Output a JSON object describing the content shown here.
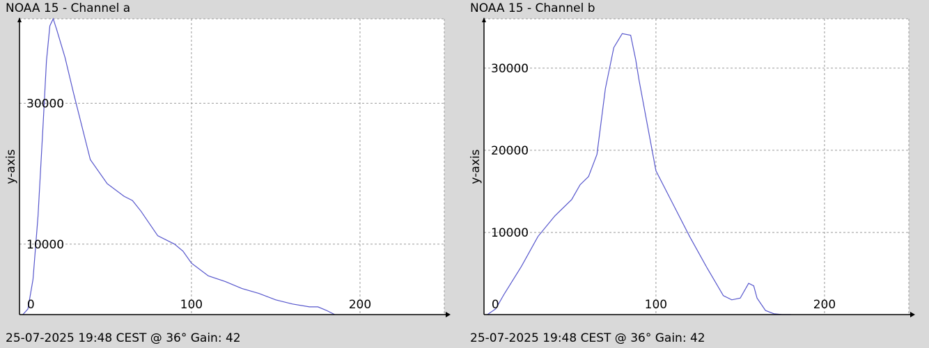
{
  "colors": {
    "background": "#d9d9d9",
    "plot_bg": "#ffffff",
    "line": "#5555cc",
    "grid": "#999999",
    "axis": "#000000"
  },
  "chart_data": [
    {
      "type": "line",
      "title": "NOAA 15 - Channel a",
      "footer": "25-07-2025 19:48 CEST @ 36° Gain: 42",
      "ylabel": "y-axis",
      "xlim": [
        -2,
        250
      ],
      "ylim": [
        0,
        42000
      ],
      "xticks": [
        {
          "value": 0,
          "label": "0"
        },
        {
          "value": 100,
          "label": "100"
        },
        {
          "value": 200,
          "label": "200"
        }
      ],
      "yticks": [
        {
          "value": 10000,
          "label": "10000"
        },
        {
          "value": 30000,
          "label": "30000"
        }
      ],
      "grid": true,
      "x": [
        0,
        3,
        6,
        9,
        12,
        14,
        16,
        18,
        20,
        25,
        30,
        40,
        50,
        60,
        65,
        70,
        80,
        90,
        95,
        100,
        110,
        120,
        130,
        140,
        150,
        160,
        170,
        175,
        180,
        185
      ],
      "y": [
        0,
        800,
        5000,
        14000,
        27000,
        36000,
        41000,
        42000,
        40500,
        36500,
        31500,
        22000,
        18600,
        16800,
        16200,
        14700,
        11200,
        10000,
        9000,
        7300,
        5500,
        4700,
        3700,
        3000,
        2100,
        1500,
        1100,
        1100,
        600,
        0
      ]
    },
    {
      "type": "line",
      "title": "NOAA 15 - Channel b",
      "footer": "25-07-2025 19:48 CEST @ 36° Gain: 42",
      "ylabel": "y-axis",
      "xlim": [
        -2,
        250
      ],
      "ylim": [
        0,
        36000
      ],
      "xticks": [
        {
          "value": 0,
          "label": "0"
        },
        {
          "value": 100,
          "label": "100"
        },
        {
          "value": 200,
          "label": "200"
        }
      ],
      "yticks": [
        {
          "value": 10000,
          "label": "10000"
        },
        {
          "value": 20000,
          "label": "20000"
        },
        {
          "value": 30000,
          "label": "30000"
        }
      ],
      "grid": true,
      "x": [
        0,
        5,
        10,
        20,
        30,
        40,
        50,
        55,
        60,
        65,
        70,
        75,
        80,
        85,
        88,
        90,
        95,
        100,
        110,
        120,
        130,
        140,
        145,
        150,
        155,
        158,
        160,
        165,
        170,
        175,
        180
      ],
      "y": [
        0,
        700,
        2500,
        5800,
        9500,
        12000,
        14000,
        15800,
        16800,
        19500,
        27500,
        32500,
        34200,
        34000,
        31000,
        28500,
        23000,
        17500,
        13500,
        9500,
        5800,
        2300,
        1800,
        2000,
        3800,
        3500,
        2000,
        500,
        100,
        0,
        0
      ]
    }
  ]
}
